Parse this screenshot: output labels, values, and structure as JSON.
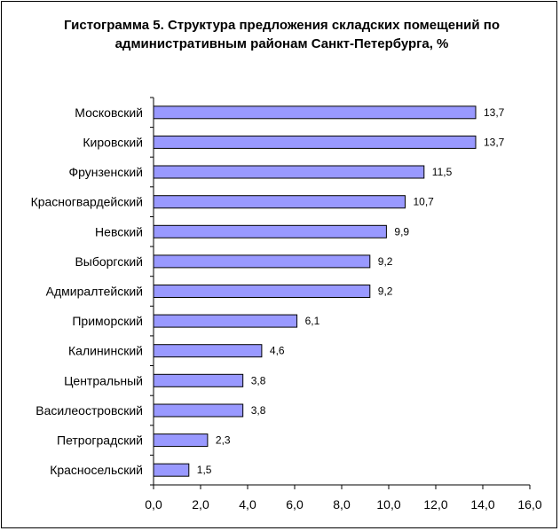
{
  "chart_data": {
    "type": "bar",
    "orientation": "horizontal",
    "title": "Гистограмма 5. Структура предложения складских помещений по административным районам Санкт-Петербурга, %",
    "categories": [
      "Московский",
      "Кировский",
      "Фрунзенский",
      "Красногвардейский",
      "Невский",
      "Выборгский",
      "Адмиралтейский",
      "Приморский",
      "Калининский",
      "Центральный",
      "Василеостровский",
      "Петроградский",
      "Красносельский"
    ],
    "values": [
      13.7,
      13.7,
      11.5,
      10.7,
      9.9,
      9.2,
      9.2,
      6.1,
      4.6,
      3.8,
      3.8,
      2.3,
      1.5
    ],
    "value_labels": [
      "13,7",
      "13,7",
      "11,5",
      "10,7",
      "9,9",
      "9,2",
      "9,2",
      "6,1",
      "4,6",
      "3,8",
      "3,8",
      "2,3",
      "1,5"
    ],
    "xlim": [
      0,
      16
    ],
    "xticks": [
      0,
      2,
      4,
      6,
      8,
      10,
      12,
      14,
      16
    ],
    "xtick_labels": [
      "0,0",
      "2,0",
      "4,0",
      "6,0",
      "8,0",
      "10,0",
      "12,0",
      "14,0",
      "16,0"
    ],
    "xlabel": "",
    "ylabel": "",
    "grid": false,
    "legend": "none",
    "bar_color": "#9999FF",
    "bar_edge_color": "#000000"
  }
}
